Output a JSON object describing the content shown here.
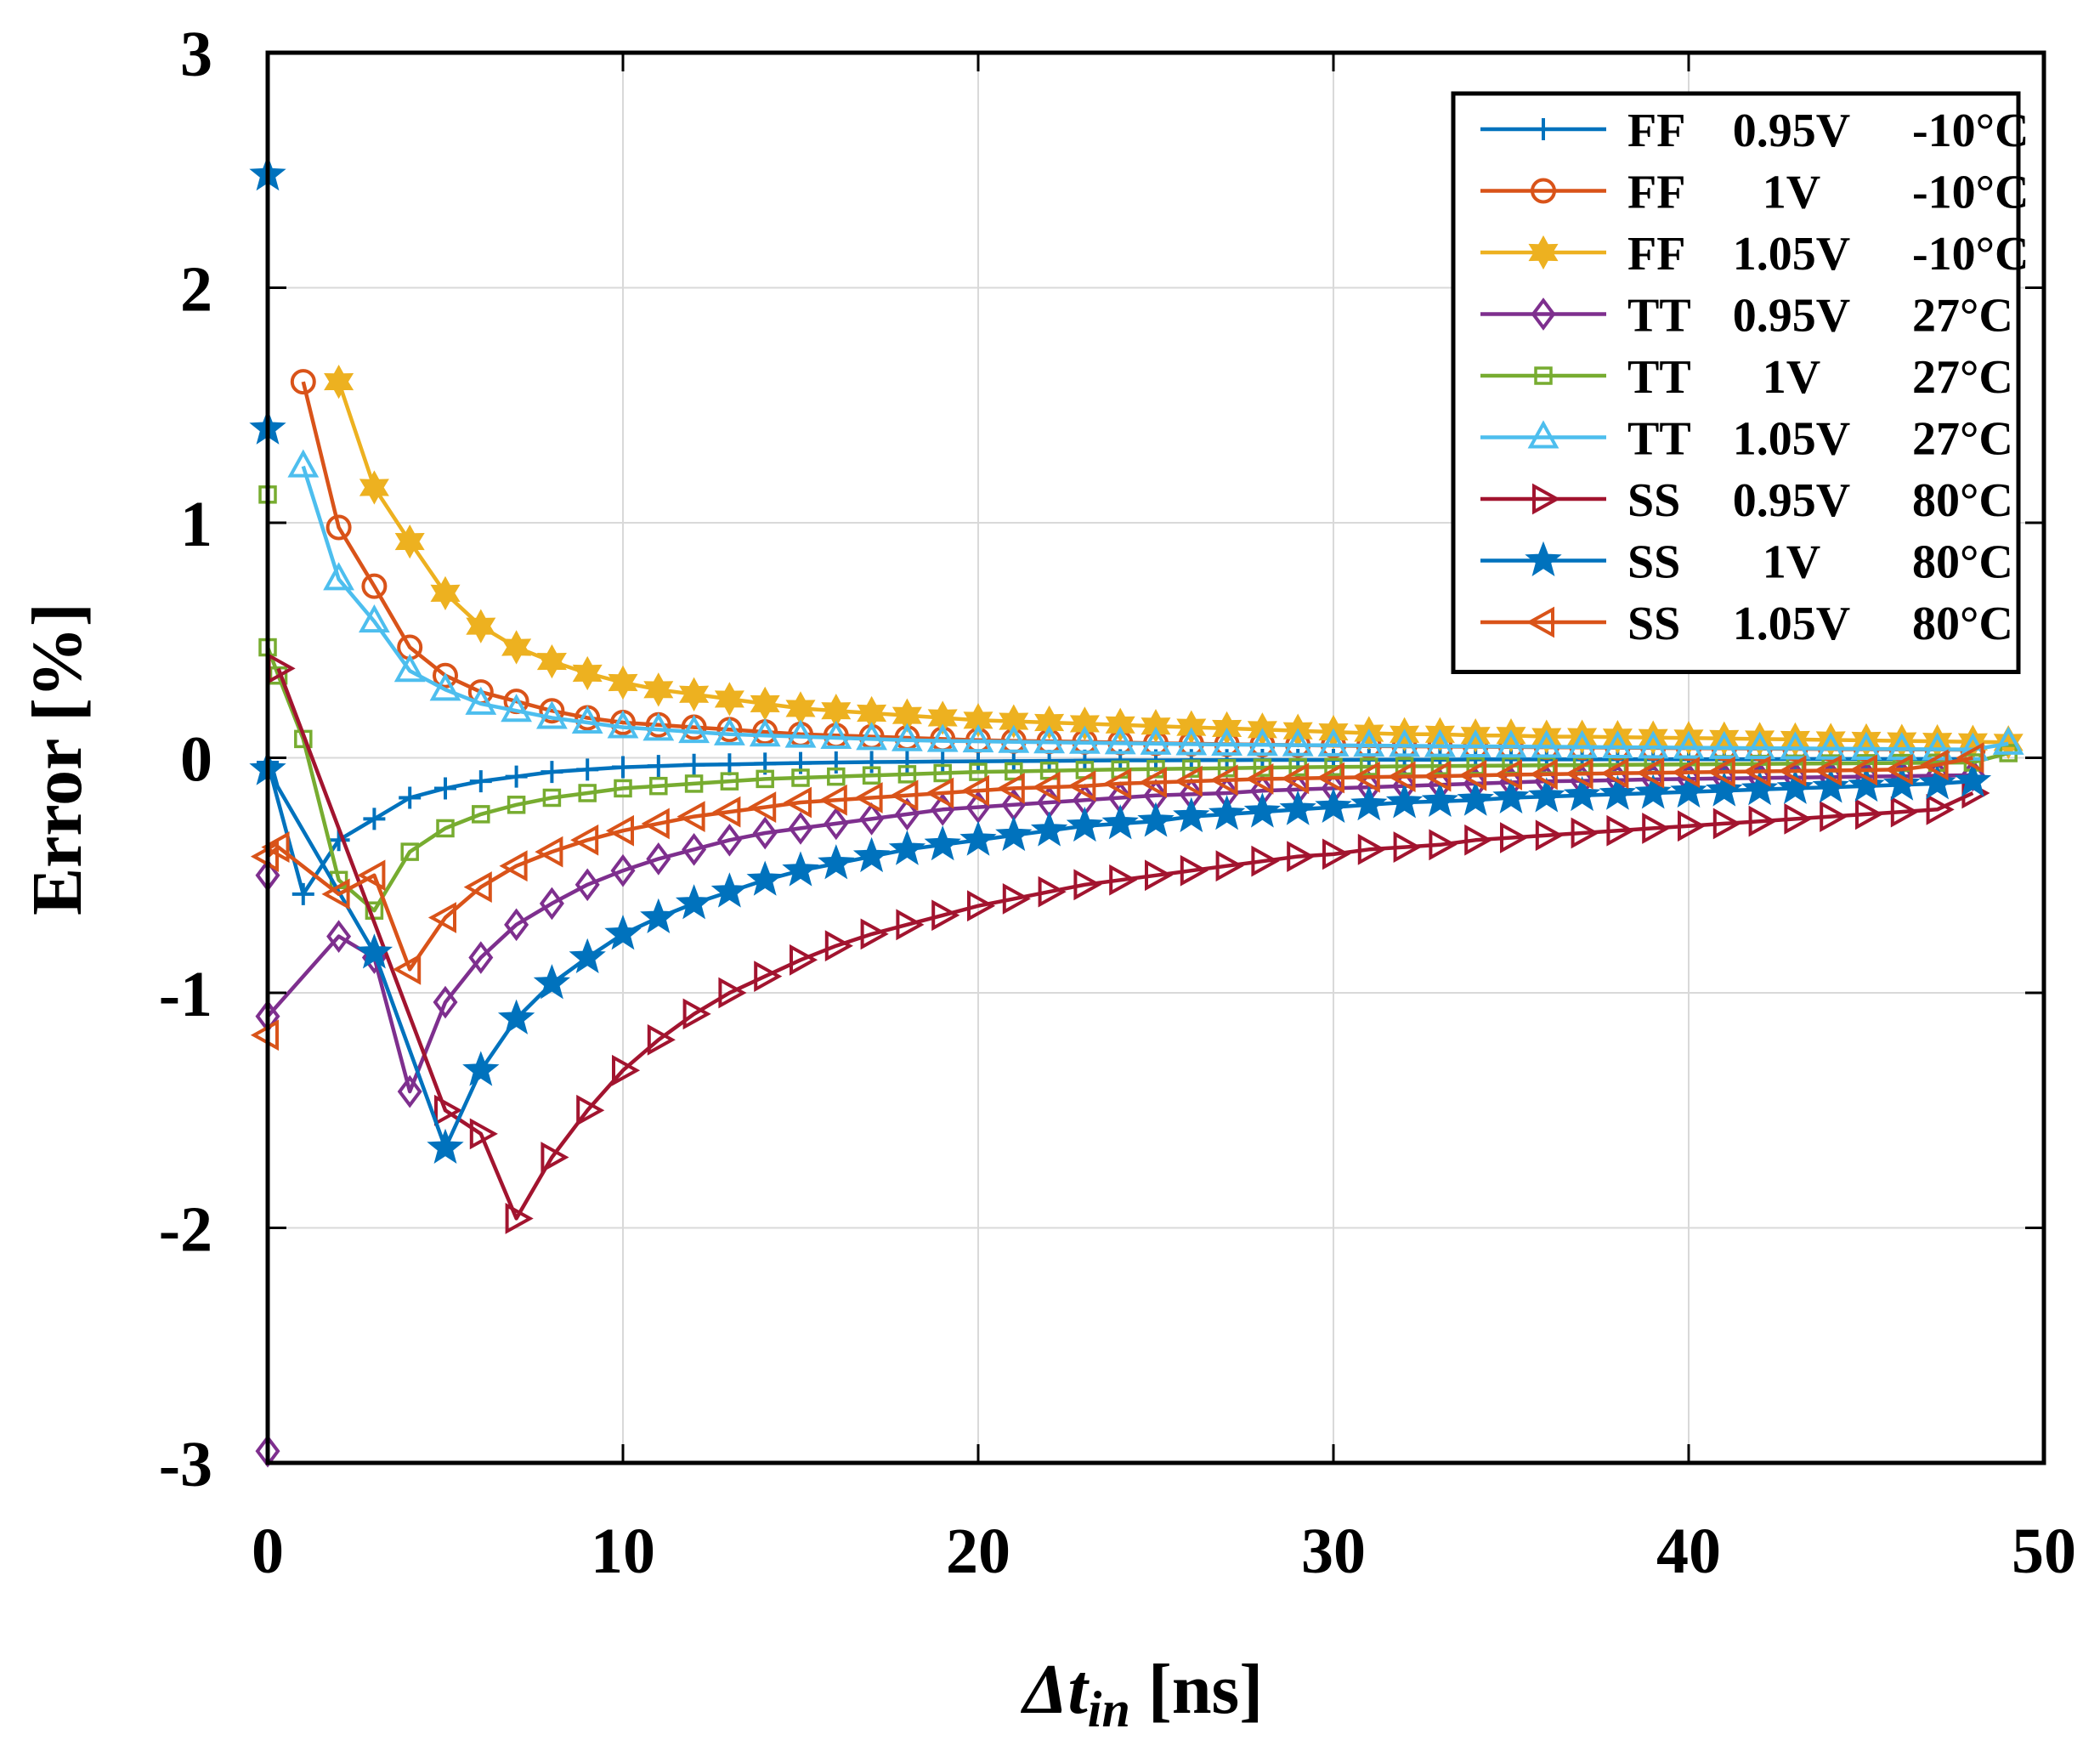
{
  "chart_data": {
    "type": "line",
    "title": "",
    "xlabel": {
      "main": "Δt",
      "sub": "in",
      "unit": " [ns]"
    },
    "ylabel": "Error [%]",
    "xlim": [
      0,
      50
    ],
    "ylim": [
      -3,
      3
    ],
    "xticks": [
      0,
      10,
      20,
      30,
      40,
      50
    ],
    "yticks": [
      -3,
      -2,
      -1,
      0,
      1,
      2,
      3
    ],
    "xtick_labels": [
      "0",
      "10",
      "20",
      "30",
      "40",
      "50"
    ],
    "ytick_labels": [
      "-3",
      "-2",
      "-1",
      "0",
      "1",
      "2",
      "3"
    ],
    "grid": true,
    "legend_position": "top-right",
    "series": [
      {
        "name": "FF 0.95V -10°C",
        "label_parts": [
          "FF",
          "0.95V",
          "-10°C"
        ],
        "color": "#0072BD",
        "marker": "plus",
        "x": [
          0,
          1,
          2,
          3,
          4,
          5,
          6,
          7,
          8,
          9,
          10,
          11,
          12,
          13,
          14,
          15,
          16,
          17,
          18,
          19,
          20,
          21,
          22,
          23,
          24,
          25,
          26,
          27,
          28,
          29,
          30,
          31,
          32,
          33,
          34,
          35,
          36,
          37,
          38,
          39,
          40,
          41,
          42,
          43,
          44,
          45,
          46,
          47,
          48
        ],
        "y": [
          -0.02,
          -0.58,
          -0.35,
          -0.26,
          -0.17,
          -0.13,
          -0.1,
          -0.08,
          -0.06,
          -0.05,
          -0.04,
          -0.035,
          -0.03,
          -0.028,
          -0.025,
          -0.022,
          -0.02,
          -0.018,
          -0.017,
          -0.016,
          -0.015,
          -0.014,
          -0.013,
          -0.012,
          -0.011,
          -0.011,
          -0.01,
          -0.01,
          -0.009,
          -0.009,
          -0.009,
          -0.008,
          -0.008,
          -0.008,
          -0.007,
          -0.007,
          -0.007,
          -0.007,
          -0.006,
          -0.006,
          -0.006,
          -0.006,
          -0.006,
          -0.005,
          -0.005,
          -0.005,
          -0.005,
          -0.005,
          -0.005
        ]
      },
      {
        "name": "FF 1V -10°C",
        "label_parts": [
          "FF",
          "1V",
          "-10°C"
        ],
        "color": "#D95319",
        "marker": "circle",
        "x": [
          1,
          2,
          3,
          4,
          5,
          6,
          7,
          8,
          9,
          10,
          11,
          12,
          13,
          14,
          15,
          16,
          17,
          18,
          19,
          20,
          21,
          22,
          23,
          24,
          25,
          26,
          27,
          28,
          29,
          30,
          31,
          32,
          33,
          34,
          35,
          36,
          37,
          38,
          39,
          40,
          41,
          42,
          43,
          44,
          45,
          46,
          47,
          48
        ],
        "y": [
          1.6,
          0.98,
          0.73,
          0.47,
          0.35,
          0.28,
          0.24,
          0.2,
          0.17,
          0.15,
          0.14,
          0.13,
          0.12,
          0.11,
          0.1,
          0.095,
          0.09,
          0.085,
          0.08,
          0.075,
          0.072,
          0.07,
          0.068,
          0.065,
          0.062,
          0.06,
          0.058,
          0.056,
          0.054,
          0.052,
          0.05,
          0.049,
          0.048,
          0.047,
          0.046,
          0.045,
          0.044,
          0.043,
          0.042,
          0.041,
          0.04,
          0.039,
          0.038,
          0.037,
          0.036,
          0.035,
          0.035,
          0.034
        ]
      },
      {
        "name": "FF 1.05V -10°C",
        "label_parts": [
          "FF",
          "1.05V",
          "-10°C"
        ],
        "color": "#EDB120",
        "marker": "hexagram",
        "x": [
          2,
          3,
          4,
          5,
          6,
          7,
          8,
          9,
          10,
          11,
          12,
          13,
          14,
          15,
          16,
          17,
          18,
          19,
          20,
          21,
          22,
          23,
          24,
          25,
          26,
          27,
          28,
          29,
          30,
          31,
          32,
          33,
          34,
          35,
          36,
          37,
          38,
          39,
          40,
          41,
          42,
          43,
          44,
          45,
          46,
          47,
          48,
          49
        ],
        "y": [
          1.6,
          1.15,
          0.92,
          0.7,
          0.56,
          0.47,
          0.41,
          0.36,
          0.32,
          0.29,
          0.27,
          0.25,
          0.23,
          0.21,
          0.2,
          0.19,
          0.18,
          0.17,
          0.16,
          0.155,
          0.15,
          0.145,
          0.14,
          0.135,
          0.13,
          0.125,
          0.12,
          0.115,
          0.11,
          0.105,
          0.1,
          0.1,
          0.095,
          0.095,
          0.09,
          0.09,
          0.088,
          0.086,
          0.084,
          0.082,
          0.08,
          0.078,
          0.076,
          0.074,
          0.072,
          0.07,
          0.068,
          0.066
        ]
      },
      {
        "name": "TT 0.95V 27°C",
        "label_parts": [
          "TT",
          "0.95V",
          "27°C"
        ],
        "color": "#7E2F8E",
        "marker": "diamond",
        "x": [
          0,
          0,
          0,
          2,
          3,
          4,
          5,
          6,
          7,
          8,
          9,
          10,
          11,
          12,
          13,
          14,
          15,
          16,
          17,
          18,
          19,
          20,
          21,
          22,
          23,
          24,
          25,
          26,
          27,
          28,
          29,
          30,
          31,
          32,
          33,
          34,
          35,
          36,
          37,
          38,
          39,
          40,
          41,
          42,
          43,
          44,
          45,
          46,
          47,
          48
        ],
        "y": [
          -0.5,
          -2.95,
          -1.1,
          -0.76,
          -0.85,
          -1.42,
          -1.04,
          -0.85,
          -0.71,
          -0.62,
          -0.54,
          -0.48,
          -0.43,
          -0.39,
          -0.35,
          -0.32,
          -0.3,
          -0.28,
          -0.26,
          -0.24,
          -0.22,
          -0.21,
          -0.2,
          -0.19,
          -0.18,
          -0.17,
          -0.16,
          -0.155,
          -0.15,
          -0.14,
          -0.135,
          -0.13,
          -0.125,
          -0.12,
          -0.115,
          -0.11,
          -0.105,
          -0.1,
          -0.098,
          -0.095,
          -0.092,
          -0.09,
          -0.088,
          -0.086,
          -0.084,
          -0.082,
          -0.08,
          -0.078,
          -0.076,
          -0.074
        ]
      },
      {
        "name": "TT 1V 27°C",
        "label_parts": [
          "TT",
          "1V",
          "27°C"
        ],
        "color": "#77AC30",
        "marker": "square",
        "x": [
          0,
          0,
          0.3,
          1,
          2,
          3,
          4,
          5,
          6,
          7,
          8,
          9,
          10,
          11,
          12,
          13,
          14,
          15,
          16,
          17,
          18,
          19,
          20,
          21,
          22,
          23,
          24,
          25,
          26,
          27,
          28,
          29,
          30,
          31,
          32,
          33,
          34,
          35,
          36,
          37,
          38,
          39,
          40,
          41,
          42,
          43,
          44,
          45,
          46,
          47,
          48,
          49
        ],
        "y": [
          1.12,
          0.47,
          0.35,
          0.08,
          -0.52,
          -0.65,
          -0.4,
          -0.3,
          -0.24,
          -0.2,
          -0.17,
          -0.15,
          -0.13,
          -0.12,
          -0.11,
          -0.1,
          -0.09,
          -0.085,
          -0.08,
          -0.075,
          -0.07,
          -0.065,
          -0.06,
          -0.058,
          -0.055,
          -0.052,
          -0.05,
          -0.048,
          -0.046,
          -0.044,
          -0.042,
          -0.04,
          -0.039,
          -0.038,
          -0.036,
          -0.035,
          -0.034,
          -0.033,
          -0.032,
          -0.031,
          -0.03,
          -0.029,
          -0.028,
          -0.027,
          -0.026,
          -0.025,
          -0.024,
          -0.023,
          -0.022,
          -0.021,
          -0.02,
          0.02
        ]
      },
      {
        "name": "TT 1.05V 27°C",
        "label_parts": [
          "TT",
          "1.05V",
          "27°C"
        ],
        "color": "#4DBEEE",
        "marker": "triangle-up",
        "x": [
          1,
          2,
          3,
          4,
          5,
          6,
          7,
          8,
          9,
          10,
          11,
          12,
          13,
          14,
          15,
          16,
          17,
          18,
          19,
          20,
          21,
          22,
          23,
          24,
          25,
          26,
          27,
          28,
          29,
          30,
          31,
          32,
          33,
          34,
          35,
          36,
          37,
          38,
          39,
          40,
          41,
          42,
          43,
          44,
          45,
          46,
          47,
          48,
          49
        ],
        "y": [
          1.24,
          0.76,
          0.58,
          0.37,
          0.29,
          0.23,
          0.2,
          0.17,
          0.15,
          0.13,
          0.12,
          0.11,
          0.1,
          0.095,
          0.09,
          0.085,
          0.08,
          0.075,
          0.072,
          0.07,
          0.068,
          0.066,
          0.064,
          0.062,
          0.06,
          0.058,
          0.056,
          0.055,
          0.054,
          0.053,
          0.052,
          0.051,
          0.05,
          0.049,
          0.048,
          0.047,
          0.046,
          0.045,
          0.044,
          0.043,
          0.042,
          0.041,
          0.04,
          0.039,
          0.038,
          0.037,
          0.036,
          0.035,
          0.06
        ]
      },
      {
        "name": "SS 0.95V 80°C",
        "label_parts": [
          "SS",
          "0.95V",
          "80°C"
        ],
        "color": "#A2142F",
        "marker": "triangle-right",
        "x": [
          0.3,
          5,
          6,
          7,
          8,
          9,
          10,
          11,
          12,
          13,
          14,
          15,
          16,
          17,
          18,
          19,
          20,
          21,
          22,
          23,
          24,
          25,
          26,
          27,
          28,
          29,
          30,
          31,
          32,
          33,
          34,
          35,
          36,
          37,
          38,
          39,
          40,
          41,
          42,
          43,
          44,
          45,
          46,
          47,
          48
        ],
        "y": [
          0.38,
          -1.5,
          -1.6,
          -1.96,
          -1.7,
          -1.5,
          -1.33,
          -1.2,
          -1.09,
          -1.0,
          -0.93,
          -0.86,
          -0.8,
          -0.75,
          -0.71,
          -0.67,
          -0.63,
          -0.6,
          -0.57,
          -0.54,
          -0.52,
          -0.5,
          -0.48,
          -0.46,
          -0.44,
          -0.42,
          -0.41,
          -0.39,
          -0.38,
          -0.37,
          -0.35,
          -0.34,
          -0.33,
          -0.32,
          -0.31,
          -0.3,
          -0.29,
          -0.28,
          -0.27,
          -0.26,
          -0.25,
          -0.24,
          -0.23,
          -0.22,
          -0.15
        ]
      },
      {
        "name": "SS 1V 80°C",
        "label_parts": [
          "SS",
          "1V",
          "80°C"
        ],
        "color": "#0072BD",
        "marker": "pentagram",
        "x": [
          0,
          0,
          0,
          3,
          5,
          6,
          7,
          8,
          9,
          10,
          11,
          12,
          13,
          14,
          15,
          16,
          17,
          18,
          19,
          20,
          21,
          22,
          23,
          24,
          25,
          26,
          27,
          28,
          29,
          30,
          31,
          32,
          33,
          34,
          35,
          36,
          37,
          38,
          39,
          40,
          41,
          42,
          43,
          44,
          45,
          46,
          47,
          48
        ],
        "y": [
          2.48,
          1.4,
          -0.05,
          -0.83,
          -1.66,
          -1.33,
          -1.11,
          -0.96,
          -0.85,
          -0.75,
          -0.68,
          -0.62,
          -0.57,
          -0.52,
          -0.48,
          -0.45,
          -0.42,
          -0.39,
          -0.37,
          -0.35,
          -0.33,
          -0.31,
          -0.29,
          -0.28,
          -0.27,
          -0.25,
          -0.24,
          -0.23,
          -0.22,
          -0.21,
          -0.2,
          -0.19,
          -0.185,
          -0.18,
          -0.17,
          -0.165,
          -0.16,
          -0.155,
          -0.15,
          -0.145,
          -0.14,
          -0.135,
          -0.13,
          -0.125,
          -0.12,
          -0.115,
          -0.11,
          -0.1
        ]
      },
      {
        "name": "SS 1.05V 80°C",
        "label_parts": [
          "SS",
          "1.05V",
          "80°C"
        ],
        "color": "#D95319",
        "marker": "triangle-left",
        "x": [
          0,
          0,
          0.3,
          2,
          3,
          4,
          5,
          6,
          7,
          8,
          9,
          10,
          11,
          12,
          13,
          14,
          15,
          16,
          17,
          18,
          19,
          20,
          21,
          22,
          23,
          24,
          25,
          26,
          27,
          28,
          29,
          30,
          31,
          32,
          33,
          34,
          35,
          36,
          37,
          38,
          39,
          40,
          41,
          42,
          43,
          44,
          45,
          46,
          47,
          48
        ],
        "y": [
          -1.18,
          -0.42,
          -0.38,
          -0.58,
          -0.5,
          -0.9,
          -0.68,
          -0.55,
          -0.46,
          -0.4,
          -0.35,
          -0.31,
          -0.28,
          -0.25,
          -0.23,
          -0.21,
          -0.19,
          -0.18,
          -0.17,
          -0.16,
          -0.15,
          -0.14,
          -0.13,
          -0.125,
          -0.12,
          -0.11,
          -0.105,
          -0.1,
          -0.095,
          -0.09,
          -0.088,
          -0.085,
          -0.082,
          -0.08,
          -0.078,
          -0.075,
          -0.072,
          -0.07,
          -0.068,
          -0.066,
          -0.064,
          -0.062,
          -0.06,
          -0.058,
          -0.056,
          -0.054,
          -0.052,
          -0.05,
          -0.03,
          0.0
        ]
      }
    ]
  }
}
